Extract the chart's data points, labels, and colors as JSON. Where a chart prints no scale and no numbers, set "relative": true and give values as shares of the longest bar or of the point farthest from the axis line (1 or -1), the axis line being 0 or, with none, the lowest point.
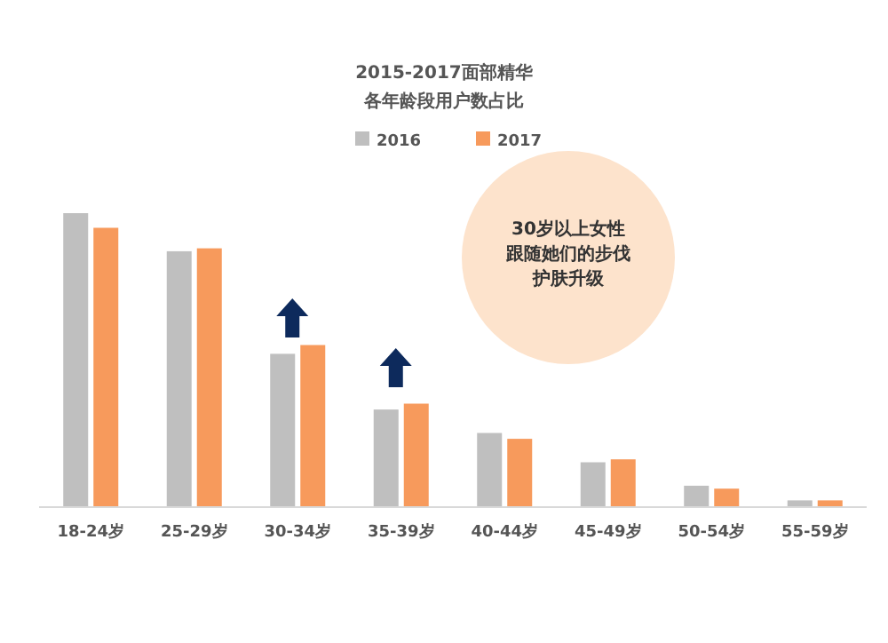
{
  "chart_data": {
    "type": "bar",
    "title": "2015-2017面部精华",
    "subtitle": "各年龄段用户数占比",
    "relative": true,
    "legend": "top",
    "categories": [
      "18-24岁",
      "25-29岁",
      "30-34岁",
      "35-39岁",
      "40-44岁",
      "45-49岁",
      "50-54岁",
      "55-59岁"
    ],
    "series": [
      {
        "name": "2016",
        "color": "#bfbfbf",
        "values": [
          1,
          0.87,
          0.52,
          0.33,
          0.25,
          0.15,
          0.07,
          0.02
        ]
      },
      {
        "name": "2017",
        "color": "#f79a5c",
        "values": [
          0.95,
          0.88,
          0.55,
          0.35,
          0.23,
          0.16,
          0.06,
          0.02
        ]
      }
    ],
    "annotations": [
      "30岁以上女性",
      "跟随她们的步伐",
      "护肤升级"
    ]
  }
}
